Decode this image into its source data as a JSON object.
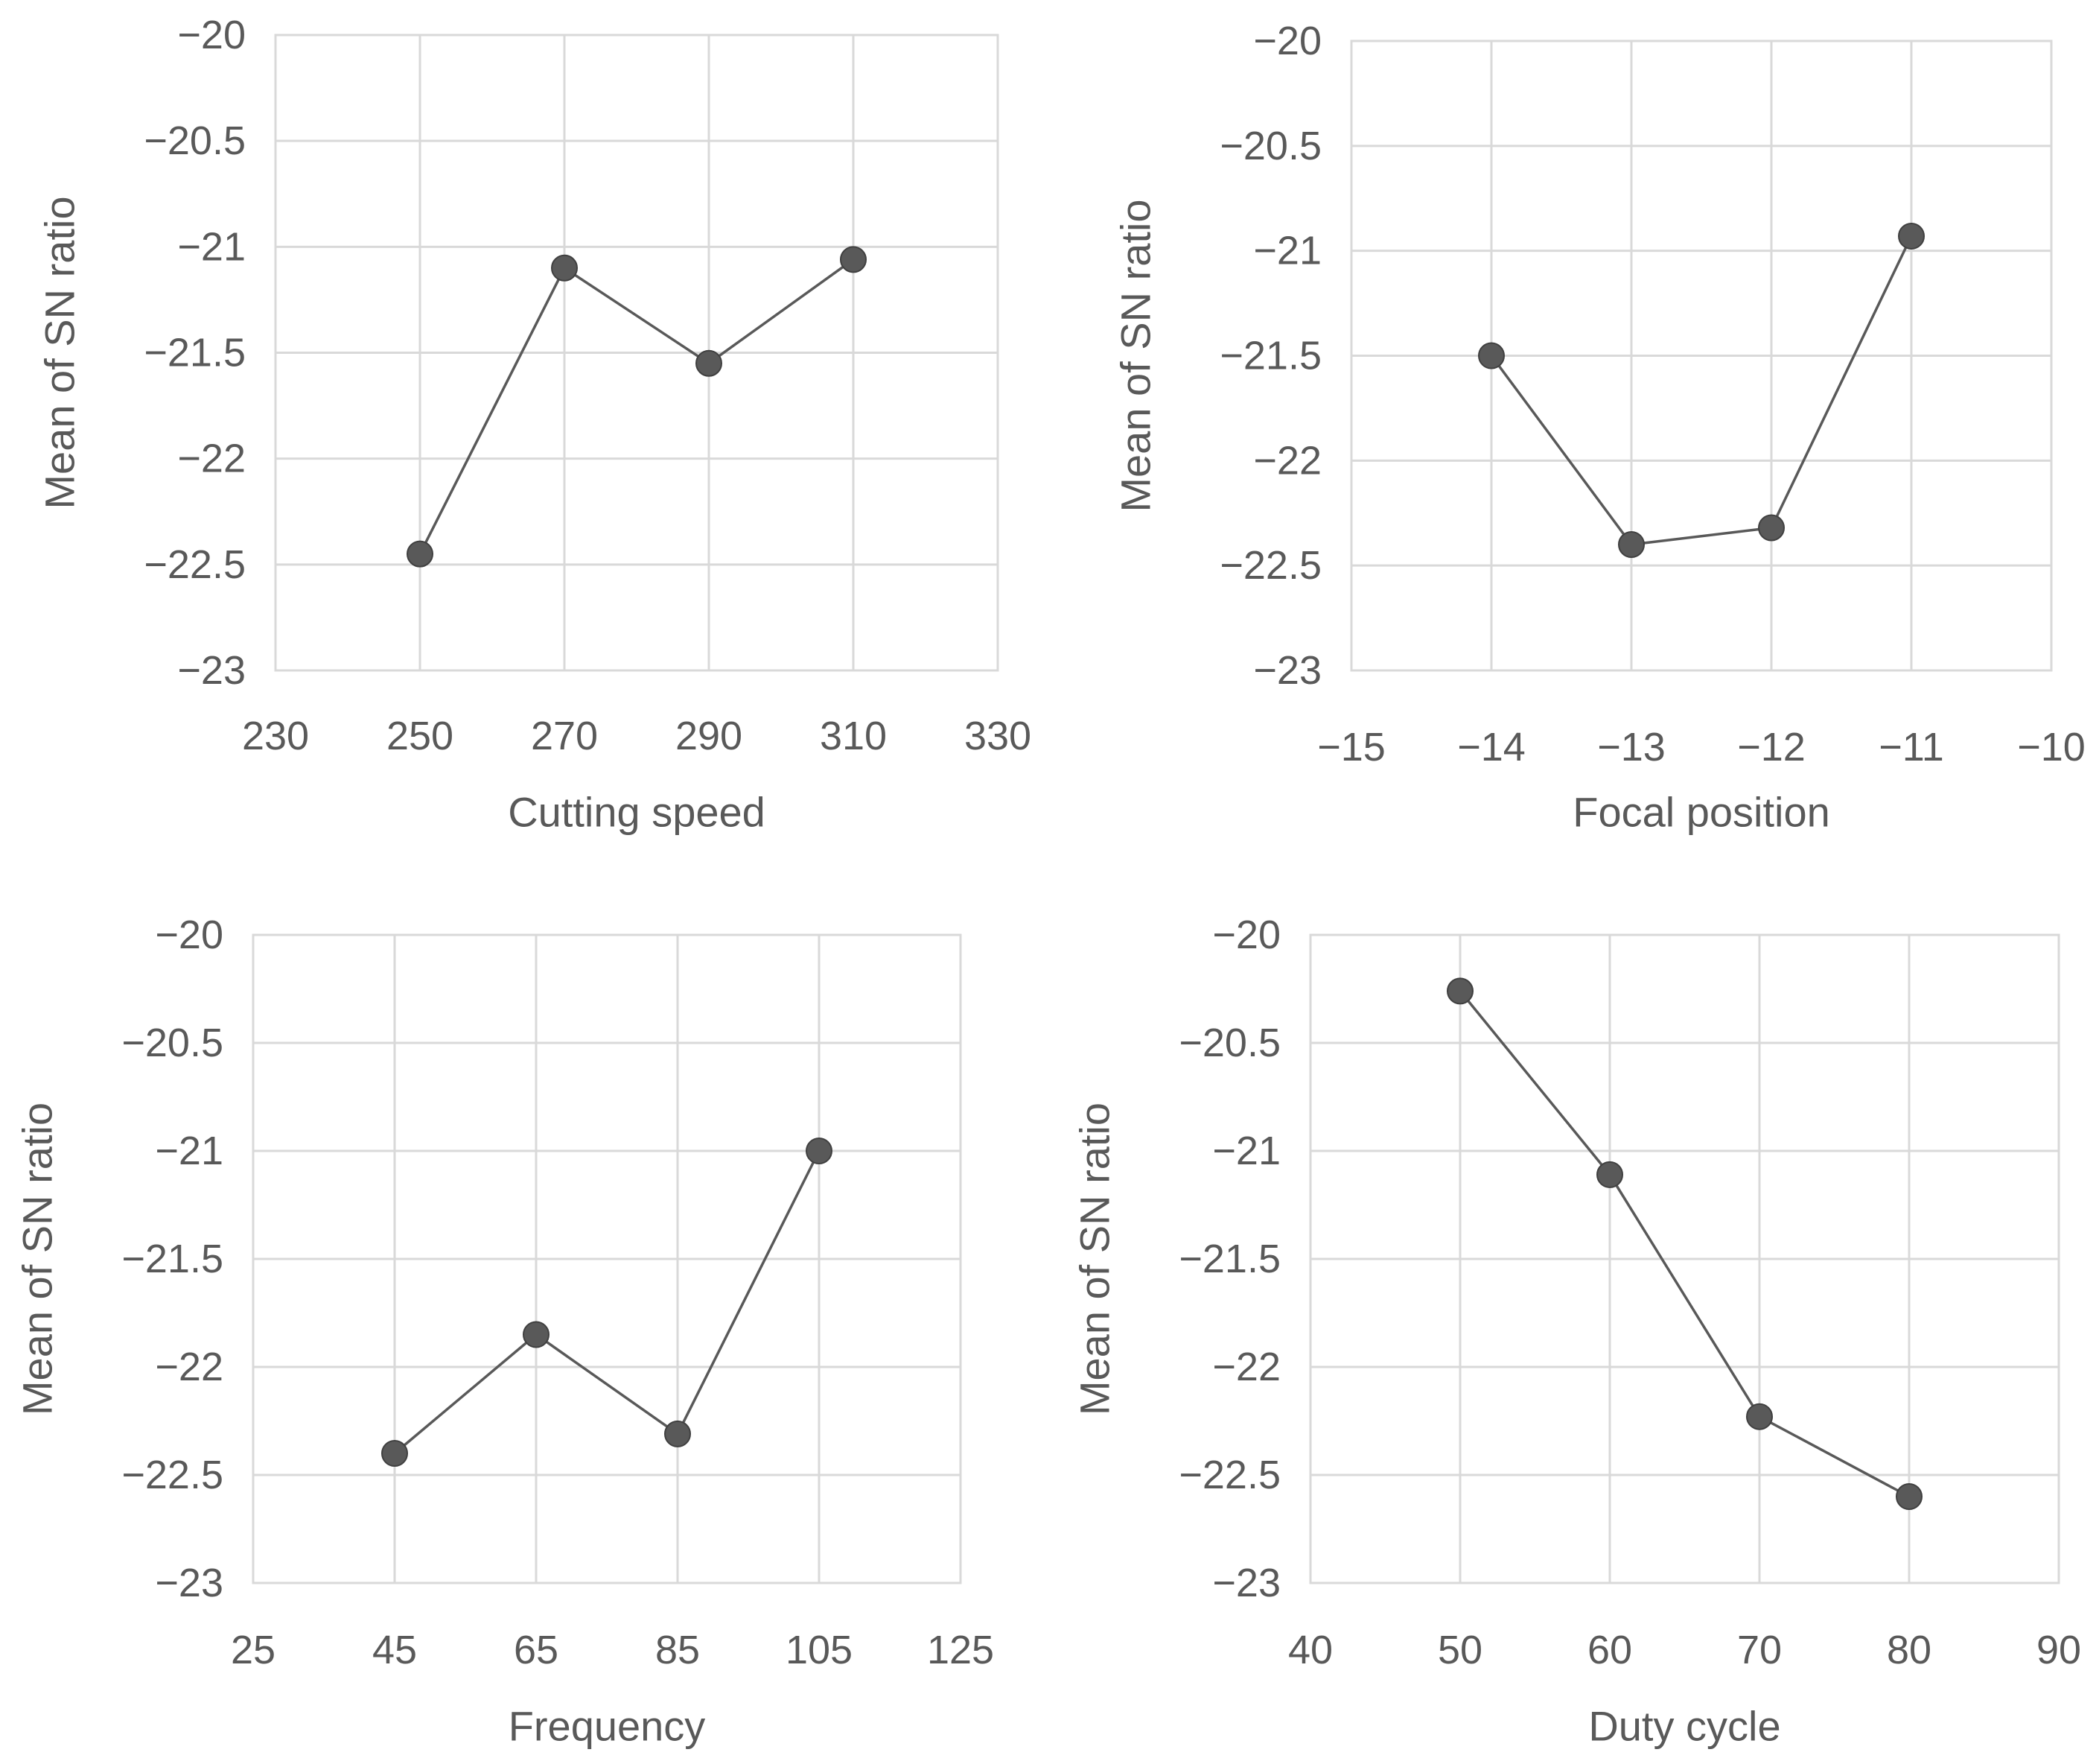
{
  "chart_data": [
    {
      "type": "line",
      "title": "",
      "xlabel": "Cutting speed",
      "ylabel": "Mean of SN ratio",
      "xlim": [
        230,
        330
      ],
      "ylim": [
        -23,
        -20
      ],
      "xticks": [
        230,
        250,
        270,
        290,
        310,
        330
      ],
      "yticks": [
        -20,
        -20.5,
        -21,
        -21.5,
        -22,
        -22.5,
        -23
      ],
      "xtick_labels": [
        "230",
        "250",
        "270",
        "290",
        "310",
        "330"
      ],
      "ytick_labels": [
        "−20",
        "−20.5",
        "−21",
        "−21.5",
        "−22",
        "−22.5",
        "−23"
      ],
      "grid": true,
      "legend": "none",
      "series": [
        {
          "name": "Mean of SN ratio",
          "x": [
            250,
            270,
            290,
            310
          ],
          "y": [
            -22.45,
            -21.1,
            -21.55,
            -21.06
          ]
        }
      ]
    },
    {
      "type": "line",
      "title": "",
      "xlabel": "Focal position",
      "ylabel": "Mean of SN ratio",
      "xlim": [
        -15,
        -10
      ],
      "ylim": [
        -23,
        -20
      ],
      "xticks": [
        -15,
        -14,
        -13,
        -12,
        -11,
        -10
      ],
      "yticks": [
        -20,
        -20.5,
        -21,
        -21.5,
        -22,
        -22.5,
        -23
      ],
      "xtick_labels": [
        "−15",
        "−14",
        "−13",
        "−12",
        "−11",
        "−10"
      ],
      "ytick_labels": [
        "−20",
        "−20.5",
        "−21",
        "−21.5",
        "−22",
        "−22.5",
        "−23"
      ],
      "grid": true,
      "legend": "none",
      "series": [
        {
          "name": "Mean of SN ratio",
          "x": [
            -14,
            -13,
            -12,
            -11
          ],
          "y": [
            -21.5,
            -22.4,
            -22.32,
            -20.93
          ]
        }
      ]
    },
    {
      "type": "line",
      "title": "",
      "xlabel": "Frequency",
      "ylabel": "Mean of SN ratio",
      "xlim": [
        25,
        125
      ],
      "ylim": [
        -23,
        -20
      ],
      "xticks": [
        25,
        45,
        65,
        85,
        105,
        125
      ],
      "yticks": [
        -20,
        -20.5,
        -21,
        -21.5,
        -22,
        -22.5,
        -23
      ],
      "xtick_labels": [
        "25",
        "45",
        "65",
        "85",
        "105",
        "125"
      ],
      "ytick_labels": [
        "−20",
        "−20.5",
        "−21",
        "−21.5",
        "−22",
        "−22.5",
        "−23"
      ],
      "grid": true,
      "legend": "none",
      "series": [
        {
          "name": "Mean of SN ratio",
          "x": [
            45,
            65,
            85,
            105
          ],
          "y": [
            -22.4,
            -21.85,
            -22.31,
            -21.0
          ]
        }
      ]
    },
    {
      "type": "line",
      "title": "",
      "xlabel": "Duty cycle",
      "ylabel": "Mean of SN ratio",
      "xlim": [
        40,
        90
      ],
      "ylim": [
        -23,
        -20
      ],
      "xticks": [
        40,
        50,
        60,
        70,
        80,
        90
      ],
      "yticks": [
        -20,
        -20.5,
        -21,
        -21.5,
        -22,
        -22.5,
        -23
      ],
      "xtick_labels": [
        "40",
        "50",
        "60",
        "70",
        "80",
        "90"
      ],
      "ytick_labels": [
        "−20",
        "−20.5",
        "−21",
        "−21.5",
        "−22",
        "−22.5",
        "−23"
      ],
      "grid": true,
      "legend": "none",
      "series": [
        {
          "name": "Mean of SN ratio",
          "x": [
            50,
            60,
            70,
            80
          ],
          "y": [
            -20.26,
            -21.11,
            -22.23,
            -22.6
          ]
        }
      ]
    }
  ]
}
